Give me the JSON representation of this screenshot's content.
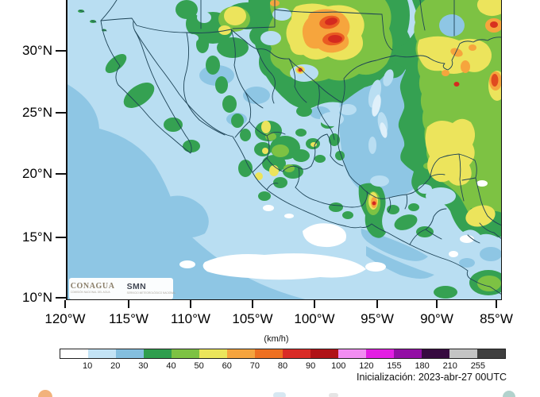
{
  "map": {
    "lat_ticks": [
      "30°N",
      "25°N",
      "20°N",
      "15°N",
      "10°N"
    ],
    "lon_ticks": [
      "120°W",
      "115°W",
      "110°W",
      "105°W",
      "100°W",
      "95°W",
      "90°W",
      "85°W"
    ]
  },
  "legend": {
    "unit": "(km/h)",
    "ticks": [
      "10",
      "20",
      "30",
      "40",
      "50",
      "60",
      "70",
      "80",
      "90",
      "100",
      "120",
      "155",
      "180",
      "210",
      "255"
    ],
    "colors": [
      "#ffffff",
      "#c3e3f5",
      "#84bfdf",
      "#2f9e4e",
      "#7dc243",
      "#ebe55b",
      "#f5a43e",
      "#ee7021",
      "#d92b26",
      "#b01217",
      "#f28df2",
      "#e31fe3",
      "#930fa5",
      "#36093f",
      "#c4c4c4",
      "#3f3f3f"
    ]
  },
  "branding": {
    "conagua": "CONAGUA",
    "conagua_sub": "COMISIÓN NACIONAL DEL AGUA",
    "smn": "SMN",
    "smn_sub": "SERVICIO METEOROLÓGICO NACIONAL"
  },
  "footer": {
    "init_text": "Inicialización: 2023-abr-27 00UTC"
  }
}
